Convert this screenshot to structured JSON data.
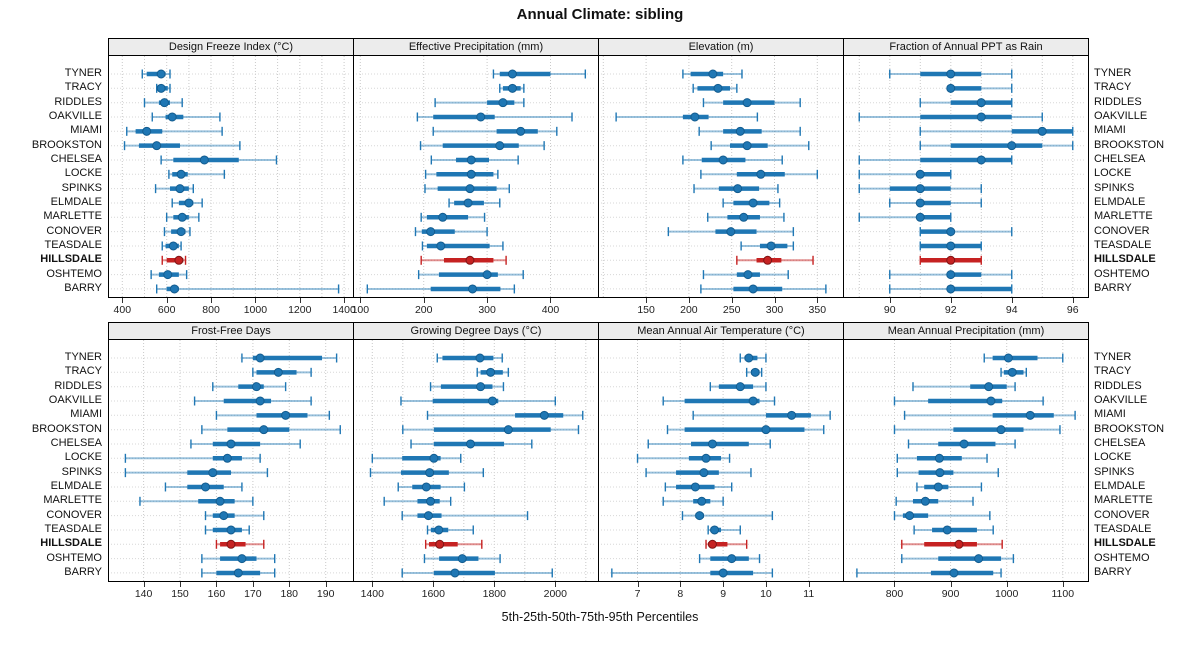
{
  "chart_data": {
    "type": "scatter",
    "subtype": "trellis-percentile-dotplot",
    "title": "Annual Climate: sibling",
    "xlabel": "5th-25th-50th-75th-95th Percentiles",
    "legend_position": "none",
    "grid": "dotted",
    "sites": [
      "TYNER",
      "TRACY",
      "RIDDLES",
      "OAKVILLE",
      "MIAMI",
      "BROOKSTON",
      "CHELSEA",
      "LOCKE",
      "SPINKS",
      "ELMDALE",
      "MARLETTE",
      "CONOVER",
      "TEASDALE",
      "HILLSDALE",
      "OSHTEMO",
      "BARRY"
    ],
    "highlight_site": "HILLSDALE",
    "percentile_order": [
      "p5",
      "p25",
      "p50",
      "p75",
      "p95"
    ],
    "colors": {
      "series": "#1f77b4",
      "series_edge": "#135c8f",
      "highlight": "#c62222",
      "highlight_edge": "#7e1414",
      "grid_line": "#c9c9c9",
      "strip_bg": "#ececec"
    },
    "panels": [
      {
        "title": "Design Freeze Index (°C)",
        "row": 0,
        "col": 0,
        "xlim": [
          340,
          1440
        ],
        "ticks": [
          400,
          600,
          800,
          1000,
          1200,
          1400
        ],
        "gridlines": [
          400,
          500,
          600,
          700,
          800,
          900,
          1000,
          1100,
          1200,
          1300,
          1400
        ],
        "values": [
          [
            490,
            510,
            575,
            595,
            615
          ],
          [
            555,
            560,
            575,
            605,
            615
          ],
          [
            500,
            565,
            590,
            615,
            670
          ],
          [
            535,
            595,
            625,
            675,
            840
          ],
          [
            420,
            460,
            510,
            580,
            850
          ],
          [
            410,
            475,
            555,
            660,
            930
          ],
          [
            575,
            630,
            770,
            925,
            1095
          ],
          [
            610,
            625,
            665,
            695,
            860
          ],
          [
            550,
            615,
            660,
            700,
            720
          ],
          [
            625,
            655,
            700,
            720,
            760
          ],
          [
            600,
            630,
            670,
            700,
            745
          ],
          [
            590,
            620,
            665,
            685,
            705
          ],
          [
            580,
            595,
            630,
            655,
            665
          ],
          [
            580,
            600,
            655,
            675,
            685
          ],
          [
            530,
            565,
            605,
            655,
            690
          ],
          [
            555,
            600,
            635,
            655,
            1375
          ]
        ]
      },
      {
        "title": "Effective Precipitation (mm)",
        "row": 0,
        "col": 1,
        "xlim": [
          90,
          475
        ],
        "ticks": [
          100,
          200,
          300,
          400
        ],
        "gridlines": [
          100,
          200,
          300,
          400
        ],
        "values": [
          [
            310,
            320,
            340,
            400,
            455
          ],
          [
            320,
            325,
            340,
            353,
            358
          ],
          [
            218,
            300,
            325,
            343,
            358
          ],
          [
            190,
            215,
            290,
            312,
            434
          ],
          [
            215,
            315,
            353,
            380,
            410
          ],
          [
            195,
            230,
            320,
            350,
            390
          ],
          [
            212,
            251,
            275,
            303,
            349
          ],
          [
            203,
            220,
            275,
            310,
            317
          ],
          [
            202,
            222,
            273,
            315,
            335
          ],
          [
            240,
            248,
            270,
            295,
            320
          ],
          [
            196,
            205,
            230,
            270,
            296
          ],
          [
            187,
            197,
            211,
            249,
            300
          ],
          [
            198,
            205,
            227,
            304,
            325
          ],
          [
            196,
            232,
            273,
            310,
            330
          ],
          [
            192,
            224,
            300,
            317,
            357
          ],
          [
            111,
            211,
            277,
            321,
            343
          ]
        ]
      },
      {
        "title": "Elevation (m)",
        "row": 0,
        "col": 2,
        "xlim": [
          95,
          380
        ],
        "ticks": [
          150,
          200,
          250,
          300,
          350
        ],
        "gridlines": [
          100,
          150,
          200,
          250,
          300,
          350
        ],
        "values": [
          [
            193,
            202,
            228,
            240,
            262
          ],
          [
            205,
            210,
            234,
            248,
            256
          ],
          [
            217,
            240,
            268,
            300,
            330
          ],
          [
            115,
            193,
            207,
            223,
            280
          ],
          [
            212,
            240,
            260,
            285,
            330
          ],
          [
            226,
            248,
            268,
            292,
            340
          ],
          [
            193,
            215,
            240,
            266,
            309
          ],
          [
            214,
            256,
            284,
            312,
            350
          ],
          [
            206,
            235,
            257,
            282,
            304
          ],
          [
            240,
            252,
            275,
            294,
            306
          ],
          [
            222,
            245,
            264,
            283,
            311
          ],
          [
            176,
            231,
            249,
            279,
            322
          ],
          [
            261,
            283,
            296,
            315,
            322
          ],
          [
            256,
            279,
            292,
            308,
            345
          ],
          [
            217,
            256,
            269,
            283,
            316
          ],
          [
            214,
            252,
            275,
            309,
            360
          ]
        ]
      },
      {
        "title": "Fraction of Annual PPT as Rain",
        "row": 0,
        "col": 3,
        "xlim": [
          88.5,
          96.5
        ],
        "ticks": [
          90,
          92,
          94,
          96
        ],
        "gridlines": [
          89,
          90,
          91,
          92,
          93,
          94,
          95,
          96
        ],
        "values": [
          [
            90,
            91,
            92,
            93,
            94
          ],
          [
            92,
            92,
            92,
            93,
            94
          ],
          [
            91,
            92,
            93,
            94,
            94
          ],
          [
            89,
            91,
            93,
            94,
            95
          ],
          [
            91,
            94,
            95,
            96,
            96
          ],
          [
            91,
            92,
            94,
            95,
            96
          ],
          [
            89,
            91,
            93,
            94,
            94
          ],
          [
            89,
            91,
            91,
            92,
            92
          ],
          [
            89,
            90,
            91,
            92,
            93
          ],
          [
            90,
            91,
            91,
            92,
            93
          ],
          [
            89,
            91,
            91,
            92,
            92
          ],
          [
            91,
            91,
            92,
            92,
            94
          ],
          [
            91,
            91,
            92,
            93,
            93
          ],
          [
            91,
            91,
            92,
            93,
            93
          ],
          [
            90,
            92,
            92,
            93,
            94
          ],
          [
            90,
            92,
            92,
            94,
            94
          ]
        ]
      },
      {
        "title": "Frost-Free Days",
        "row": 1,
        "col": 0,
        "xlim": [
          130.5,
          197.5
        ],
        "ticks": [
          140,
          150,
          160,
          170,
          180,
          190
        ],
        "gridlines": [
          140,
          150,
          160,
          170,
          180,
          190
        ],
        "values": [
          [
            167,
            170,
            172,
            189,
            193
          ],
          [
            170,
            171,
            177,
            182,
            186
          ],
          [
            159,
            166,
            171,
            173,
            179
          ],
          [
            154,
            162,
            172,
            175,
            186
          ],
          [
            160,
            171,
            179,
            185,
            191
          ],
          [
            156,
            163,
            173,
            180,
            194
          ],
          [
            153,
            159,
            164,
            172,
            183
          ],
          [
            135,
            159,
            163,
            167,
            172
          ],
          [
            135,
            152,
            159,
            164,
            174
          ],
          [
            146,
            152,
            157,
            162,
            167
          ],
          [
            139,
            155,
            161,
            165,
            170
          ],
          [
            157,
            159,
            162,
            165,
            173
          ],
          [
            157,
            159,
            164,
            167,
            169
          ],
          [
            160,
            161,
            164,
            168,
            173
          ],
          [
            156,
            161,
            167,
            171,
            176
          ],
          [
            156,
            160,
            166,
            172,
            176
          ]
        ]
      },
      {
        "title": "Growing Degree Days (°C)",
        "row": 1,
        "col": 1,
        "xlim": [
          1340,
          2140
        ],
        "ticks": [
          1400,
          1600,
          1800,
          2000
        ],
        "gridlines": [
          1400,
          1500,
          1600,
          1700,
          1800,
          1900,
          2000,
          2100
        ],
        "values": [
          [
            1613,
            1630,
            1753,
            1797,
            1826
          ],
          [
            1744,
            1755,
            1788,
            1828,
            1846
          ],
          [
            1591,
            1625,
            1755,
            1794,
            1830
          ],
          [
            1494,
            1598,
            1794,
            1813,
            2000
          ],
          [
            1581,
            1868,
            1964,
            2026,
            2090
          ],
          [
            1500,
            1602,
            1846,
            1985,
            2076
          ],
          [
            1527,
            1602,
            1722,
            1832,
            1923
          ],
          [
            1400,
            1498,
            1602,
            1624,
            1690
          ],
          [
            1394,
            1494,
            1588,
            1651,
            1764
          ],
          [
            1485,
            1531,
            1577,
            1624,
            1702
          ],
          [
            1439,
            1548,
            1591,
            1621,
            1657
          ],
          [
            1498,
            1548,
            1584,
            1627,
            1909
          ],
          [
            1581,
            1592,
            1618,
            1649,
            1731
          ],
          [
            1575,
            1586,
            1621,
            1680,
            1759
          ],
          [
            1571,
            1619,
            1695,
            1748,
            1819
          ],
          [
            1498,
            1602,
            1671,
            1802,
            1990
          ]
        ]
      },
      {
        "title": "Mean Annual Air Temperature (°C)",
        "row": 1,
        "col": 2,
        "xlim": [
          6.1,
          11.8
        ],
        "ticks": [
          7,
          8,
          9,
          10,
          11
        ],
        "gridlines": [
          7,
          8,
          9,
          10,
          11
        ],
        "values": [
          [
            9.4,
            9.5,
            9.6,
            9.8,
            10.0
          ],
          [
            9.55,
            9.65,
            9.75,
            9.85,
            9.9
          ],
          [
            8.7,
            8.9,
            9.4,
            9.7,
            10.0
          ],
          [
            7.6,
            8.1,
            9.7,
            9.85,
            10.2
          ],
          [
            8.3,
            10.0,
            10.6,
            11.05,
            11.5
          ],
          [
            7.7,
            8.1,
            10.0,
            10.9,
            11.35
          ],
          [
            7.25,
            8.25,
            8.75,
            9.6,
            10.1
          ],
          [
            7.0,
            8.2,
            8.6,
            8.95,
            9.15
          ],
          [
            7.2,
            7.9,
            8.55,
            8.9,
            9.65
          ],
          [
            7.65,
            7.9,
            8.35,
            8.8,
            9.2
          ],
          [
            7.6,
            8.3,
            8.5,
            8.7,
            9.0
          ],
          [
            8.05,
            8.35,
            8.45,
            8.55,
            10.15
          ],
          [
            8.65,
            8.7,
            8.8,
            8.95,
            9.4
          ],
          [
            8.6,
            8.65,
            8.75,
            9.1,
            9.55
          ],
          [
            8.45,
            8.7,
            9.2,
            9.6,
            9.85
          ],
          [
            6.4,
            8.7,
            9.0,
            9.7,
            10.15
          ]
        ]
      },
      {
        "title": "Mean Annual Precipitation (mm)",
        "row": 1,
        "col": 3,
        "xlim": [
          710,
          1145
        ],
        "ticks": [
          800,
          900,
          1000,
          1100
        ],
        "gridlines": [
          800,
          900,
          1000,
          1100
        ],
        "values": [
          [
            960,
            975,
            1003,
            1055,
            1100
          ],
          [
            990,
            995,
            1010,
            1030,
            1035
          ],
          [
            833,
            935,
            968,
            1000,
            1015
          ],
          [
            800,
            860,
            972,
            992,
            1065
          ],
          [
            818,
            975,
            1042,
            1084,
            1122
          ],
          [
            800,
            905,
            990,
            1030,
            1095
          ],
          [
            825,
            878,
            924,
            980,
            1015
          ],
          [
            805,
            840,
            880,
            920,
            965
          ],
          [
            805,
            843,
            881,
            905,
            985
          ],
          [
            840,
            853,
            878,
            896,
            955
          ],
          [
            803,
            833,
            855,
            878,
            940
          ],
          [
            800,
            815,
            827,
            860,
            970
          ],
          [
            835,
            867,
            894,
            947,
            976
          ],
          [
            813,
            853,
            915,
            947,
            992
          ],
          [
            813,
            878,
            950,
            990,
            1012
          ],
          [
            733,
            865,
            906,
            976,
            990
          ]
        ]
      }
    ]
  }
}
